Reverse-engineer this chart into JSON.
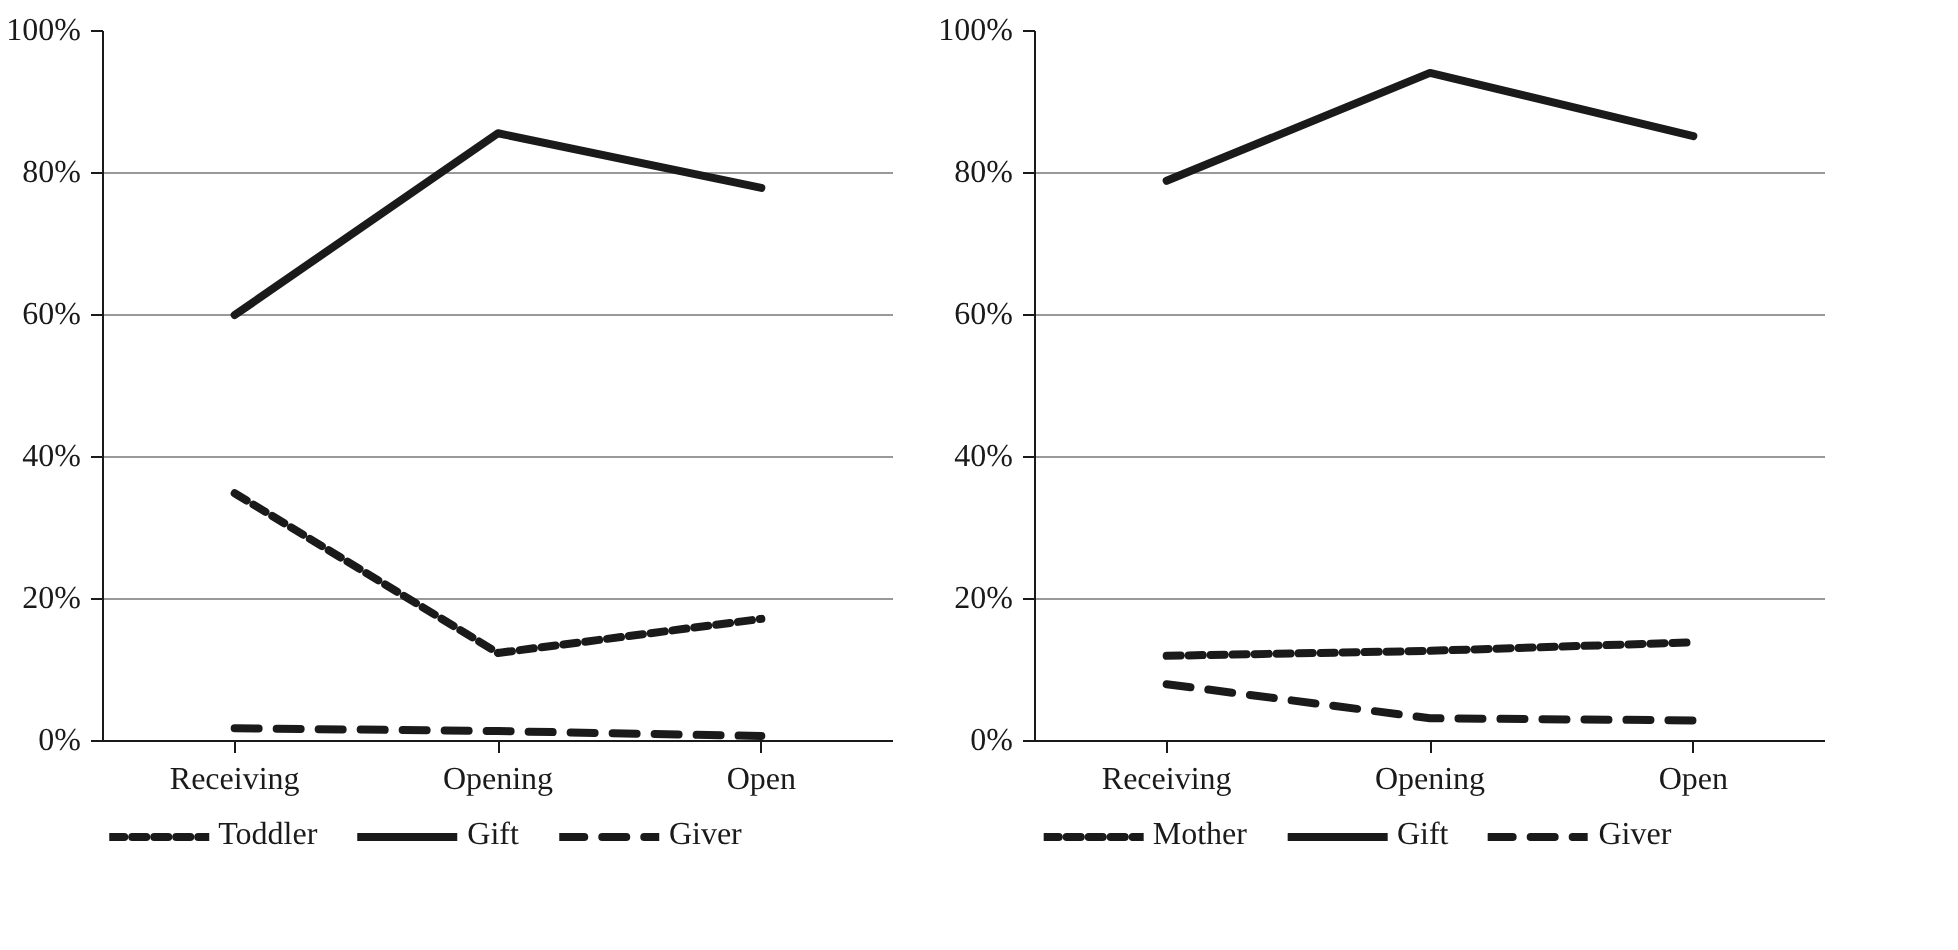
{
  "chart_data": [
    {
      "type": "line",
      "categories": [
        "Receiving",
        "Opening",
        "Open"
      ],
      "ylim": [
        0,
        100
      ],
      "yticks": [
        {
          "value": 0,
          "label": "0%"
        },
        {
          "value": 20,
          "label": "20%"
        },
        {
          "value": 40,
          "label": "40%"
        },
        {
          "value": 60,
          "label": "60%"
        },
        {
          "value": 80,
          "label": "80%"
        },
        {
          "value": 100,
          "label": "100%"
        }
      ],
      "grid": "y",
      "legend": "bottom",
      "marker": "none",
      "series": [
        {
          "name": "Toddler",
          "color": "#1a1a1a",
          "line_style": "dotted",
          "values": [
            34.9,
            12.4,
            17.2
          ]
        },
        {
          "name": "Gift",
          "color": "#1a1a1a",
          "line_style": "solid",
          "values": [
            60,
            85.6,
            77.9
          ]
        },
        {
          "name": "Giver",
          "color": "#1a1a1a",
          "line_style": "dashed",
          "values": [
            1.8,
            1.4,
            0.7
          ]
        }
      ]
    },
    {
      "type": "line",
      "categories": [
        "Receiving",
        "Opening",
        "Open"
      ],
      "ylim": [
        0,
        100
      ],
      "yticks": [
        {
          "value": 0,
          "label": "0%"
        },
        {
          "value": 20,
          "label": "20%"
        },
        {
          "value": 40,
          "label": "40%"
        },
        {
          "value": 60,
          "label": "60%"
        },
        {
          "value": 80,
          "label": "80%"
        },
        {
          "value": 100,
          "label": "100%"
        }
      ],
      "grid": "y",
      "legend": "bottom",
      "marker": "none",
      "series": [
        {
          "name": "Mother",
          "color": "#1a1a1a",
          "line_style": "dotted",
          "values": [
            12.0,
            12.7,
            13.9
          ]
        },
        {
          "name": "Gift",
          "color": "#1a1a1a",
          "line_style": "solid",
          "values": [
            78.9,
            94.1,
            85.2
          ]
        },
        {
          "name": "Giver",
          "color": "#1a1a1a",
          "line_style": "dashed",
          "values": [
            8.0,
            3.2,
            2.9
          ]
        }
      ]
    }
  ]
}
